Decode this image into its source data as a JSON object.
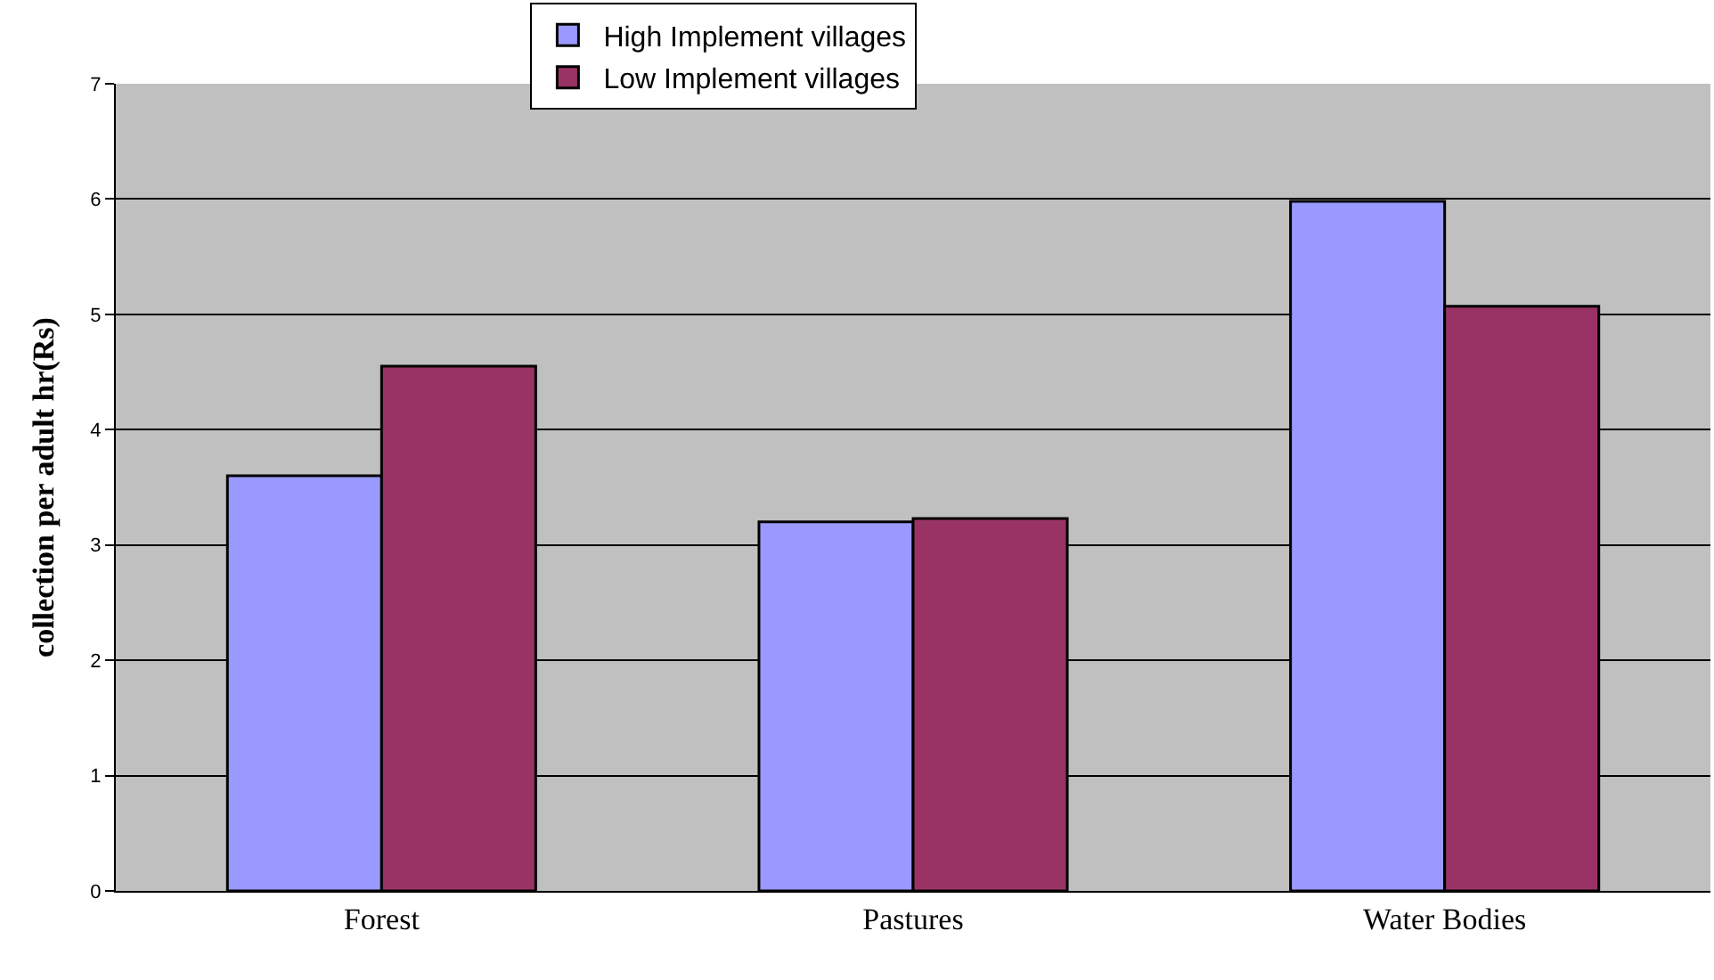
{
  "chart_data": {
    "type": "bar",
    "ylabel": "collection per adult hr(Rs)",
    "categories": [
      "Forest",
      "Pastures",
      "Water Bodies"
    ],
    "series": [
      {
        "name": "High Implement villages",
        "color": "#9999ff",
        "values": [
          3.6,
          3.2,
          5.98
        ]
      },
      {
        "name": "Low Implement villages",
        "color": "#993366",
        "values": [
          4.55,
          3.23,
          5.07
        ]
      }
    ],
    "ylim": [
      0,
      7
    ],
    "yticks": [
      0,
      1,
      2,
      3,
      4,
      5,
      6,
      7
    ],
    "grid": "y",
    "legend": "top"
  }
}
